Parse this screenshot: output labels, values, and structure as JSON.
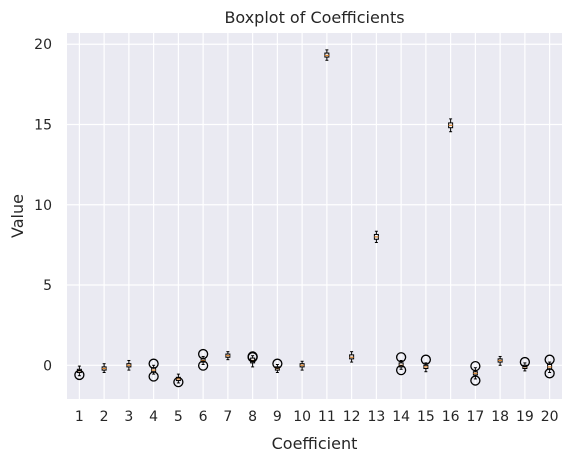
{
  "chart_data": {
    "type": "boxplot",
    "title": "Boxplot of Coefficients",
    "xlabel": "Coefficient",
    "ylabel": "Value",
    "ylim": [
      -2.1,
      20.7
    ],
    "yticks": [
      0,
      5,
      10,
      15,
      20
    ],
    "categories": [
      "1",
      "2",
      "3",
      "4",
      "5",
      "6",
      "7",
      "8",
      "9",
      "10",
      "11",
      "12",
      "13",
      "14",
      "15",
      "16",
      "17",
      "18",
      "19",
      "20"
    ],
    "grid": true,
    "colors": {
      "background": "#eaeaf2",
      "grid": "#ffffff",
      "box": "#000000",
      "median": "#d9822b",
      "outlier": "#000000"
    },
    "boxes": [
      {
        "median": -0.35,
        "q1": -0.45,
        "q3": -0.25,
        "whislo": -0.65,
        "whishi": -0.05,
        "fliers": [
          -0.6
        ]
      },
      {
        "median": -0.2,
        "q1": -0.3,
        "q3": -0.1,
        "whislo": -0.45,
        "whishi": 0.1,
        "fliers": []
      },
      {
        "median": 0.0,
        "q1": -0.1,
        "q3": 0.1,
        "whislo": -0.3,
        "whishi": 0.3,
        "fliers": []
      },
      {
        "median": -0.3,
        "q1": -0.4,
        "q3": -0.15,
        "whislo": -0.55,
        "whishi": 0.0,
        "fliers": [
          0.1,
          -0.7
        ]
      },
      {
        "median": -0.85,
        "q1": -0.95,
        "q3": -0.75,
        "whislo": -1.1,
        "whishi": -0.55,
        "fliers": [
          -1.05
        ]
      },
      {
        "median": 0.3,
        "q1": 0.2,
        "q3": 0.4,
        "whislo": 0.05,
        "whishi": 0.55,
        "fliers": [
          0.7,
          -0.02
        ]
      },
      {
        "median": 0.6,
        "q1": 0.5,
        "q3": 0.7,
        "whislo": 0.35,
        "whishi": 0.85,
        "fliers": []
      },
      {
        "median": 0.3,
        "q1": 0.15,
        "q3": 0.45,
        "whislo": -0.1,
        "whishi": 0.6,
        "fliers": [
          0.55,
          0.5
        ]
      },
      {
        "median": -0.2,
        "q1": -0.3,
        "q3": -0.1,
        "whislo": -0.45,
        "whishi": 0.05,
        "fliers": [
          0.1
        ]
      },
      {
        "median": 0.0,
        "q1": -0.1,
        "q3": 0.1,
        "whislo": -0.3,
        "whishi": 0.25,
        "fliers": []
      },
      {
        "median": 19.3,
        "q1": 19.2,
        "q3": 19.45,
        "whislo": 19.0,
        "whishi": 19.65,
        "fliers": []
      },
      {
        "median": 0.5,
        "q1": 0.4,
        "q3": 0.65,
        "whislo": 0.2,
        "whishi": 0.85,
        "fliers": []
      },
      {
        "median": 8.0,
        "q1": 7.85,
        "q3": 8.15,
        "whislo": 7.65,
        "whishi": 8.35,
        "fliers": []
      },
      {
        "median": 0.0,
        "q1": -0.1,
        "q3": 0.15,
        "whislo": -0.25,
        "whishi": 0.3,
        "fliers": [
          0.5,
          -0.3
        ]
      },
      {
        "median": -0.1,
        "q1": -0.2,
        "q3": 0.0,
        "whislo": -0.4,
        "whishi": 0.15,
        "fliers": [
          0.35
        ]
      },
      {
        "median": 14.95,
        "q1": 14.8,
        "q3": 15.1,
        "whislo": 14.55,
        "whishi": 15.35,
        "fliers": []
      },
      {
        "median": -0.5,
        "q1": -0.6,
        "q3": -0.4,
        "whislo": -0.85,
        "whishi": -0.15,
        "fliers": [
          -0.05,
          -0.95
        ]
      },
      {
        "median": 0.3,
        "q1": 0.2,
        "q3": 0.4,
        "whislo": 0.0,
        "whishi": 0.55,
        "fliers": []
      },
      {
        "median": -0.1,
        "q1": -0.2,
        "q3": 0.0,
        "whislo": -0.35,
        "whishi": 0.15,
        "fliers": [
          0.2
        ]
      },
      {
        "median": -0.1,
        "q1": -0.25,
        "q3": 0.05,
        "whislo": -0.45,
        "whishi": 0.2,
        "fliers": [
          0.35,
          -0.5
        ]
      }
    ]
  }
}
